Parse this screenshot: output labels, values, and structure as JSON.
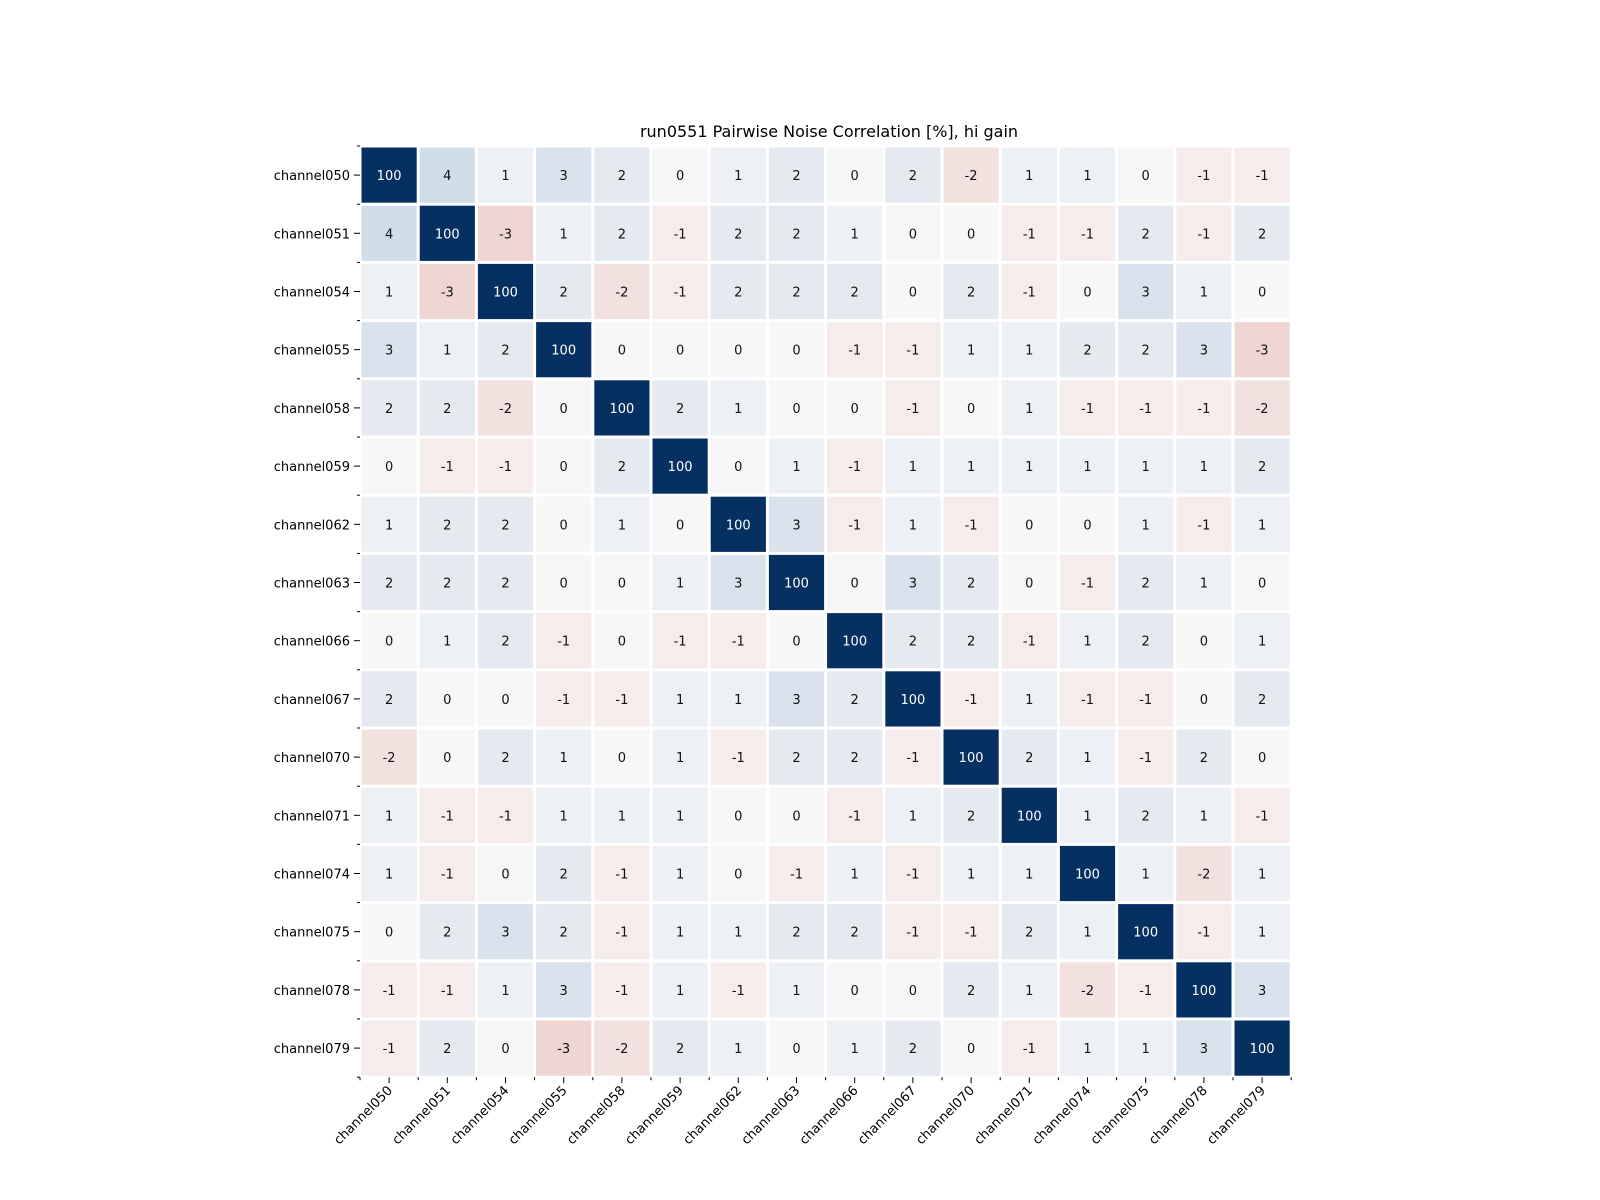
{
  "chart_data": {
    "type": "heatmap",
    "title": "run0551 Pairwise Noise Correlation [%], hi gain",
    "xlabel": "",
    "ylabel": "",
    "labels": [
      "channel050",
      "channel051",
      "channel054",
      "channel055",
      "channel058",
      "channel059",
      "channel062",
      "channel063",
      "channel066",
      "channel067",
      "channel070",
      "channel071",
      "channel074",
      "channel075",
      "channel078",
      "channel079"
    ],
    "values": [
      [
        100,
        4,
        1,
        3,
        2,
        0,
        1,
        2,
        0,
        2,
        -2,
        1,
        1,
        0,
        -1,
        -1
      ],
      [
        4,
        100,
        -3,
        1,
        2,
        -1,
        2,
        2,
        1,
        0,
        0,
        -1,
        -1,
        2,
        -1,
        2
      ],
      [
        1,
        -3,
        100,
        2,
        -2,
        -1,
        2,
        2,
        2,
        0,
        2,
        -1,
        0,
        3,
        1,
        0
      ],
      [
        3,
        1,
        2,
        100,
        0,
        0,
        0,
        0,
        -1,
        -1,
        1,
        1,
        2,
        2,
        3,
        -3
      ],
      [
        2,
        2,
        -2,
        0,
        100,
        2,
        1,
        0,
        0,
        -1,
        0,
        1,
        -1,
        -1,
        -1,
        -2
      ],
      [
        0,
        -1,
        -1,
        0,
        2,
        100,
        0,
        1,
        -1,
        1,
        1,
        1,
        1,
        1,
        1,
        2
      ],
      [
        1,
        2,
        2,
        0,
        1,
        0,
        100,
        3,
        -1,
        1,
        -1,
        0,
        0,
        1,
        -1,
        1
      ],
      [
        2,
        2,
        2,
        0,
        0,
        1,
        3,
        100,
        0,
        3,
        2,
        0,
        -1,
        2,
        1,
        0
      ],
      [
        0,
        1,
        2,
        -1,
        0,
        -1,
        -1,
        0,
        100,
        2,
        2,
        -1,
        1,
        2,
        0,
        1
      ],
      [
        2,
        0,
        0,
        -1,
        -1,
        1,
        1,
        3,
        2,
        100,
        -1,
        1,
        -1,
        -1,
        0,
        2
      ],
      [
        -2,
        0,
        2,
        1,
        0,
        1,
        -1,
        2,
        2,
        -1,
        100,
        2,
        1,
        -1,
        2,
        0
      ],
      [
        1,
        -1,
        -1,
        1,
        1,
        1,
        0,
        0,
        -1,
        1,
        2,
        100,
        1,
        2,
        1,
        -1
      ],
      [
        1,
        -1,
        0,
        2,
        -1,
        1,
        0,
        -1,
        1,
        -1,
        1,
        1,
        100,
        1,
        -2,
        1
      ],
      [
        0,
        2,
        3,
        2,
        -1,
        1,
        1,
        2,
        2,
        -1,
        -1,
        2,
        1,
        100,
        -1,
        1
      ],
      [
        -1,
        -1,
        1,
        3,
        -1,
        1,
        -1,
        1,
        0,
        0,
        2,
        1,
        -2,
        -1,
        100,
        3
      ],
      [
        -1,
        2,
        0,
        -3,
        -2,
        2,
        1,
        0,
        1,
        2,
        0,
        -1,
        1,
        1,
        3,
        100
      ]
    ],
    "colormap": "RdBu",
    "value_range": [
      -100,
      100
    ],
    "colors": {
      "diagonal": "#053061",
      "positive_tint": "#2166ac",
      "negative_tint": "#d6604d",
      "neutral": "#f7f7f7"
    },
    "grid": false,
    "legend": "none"
  }
}
